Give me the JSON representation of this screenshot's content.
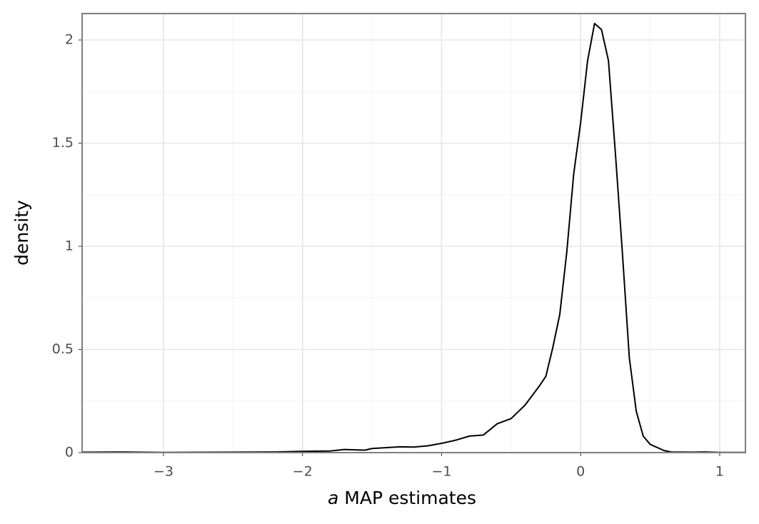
{
  "chart_data": {
    "type": "line",
    "xlabel_symbol": "a",
    "xlabel": "MAP estimates",
    "ylabel": "density",
    "x": [
      -3.58,
      -3.3,
      -3.0,
      -2.5,
      -2.2,
      -2.0,
      -1.8,
      -1.7,
      -1.55,
      -1.5,
      -1.3,
      -1.2,
      -1.1,
      -1.0,
      -0.9,
      -0.8,
      -0.7,
      -0.6,
      -0.5,
      -0.4,
      -0.3,
      -0.25,
      -0.2,
      -0.15,
      -0.1,
      -0.05,
      0.0,
      0.05,
      0.1,
      0.15,
      0.2,
      0.25,
      0.3,
      0.35,
      0.4,
      0.45,
      0.5,
      0.6,
      0.65,
      0.8,
      0.9,
      1.0,
      1.18
    ],
    "series": [
      {
        "color": "#000000",
        "values": [
          0.002,
          0.003,
          0.001,
          0.002,
          0.003,
          0.006,
          0.008,
          0.015,
          0.012,
          0.02,
          0.028,
          0.027,
          0.033,
          0.045,
          0.06,
          0.08,
          0.085,
          0.14,
          0.165,
          0.23,
          0.32,
          0.37,
          0.51,
          0.67,
          0.97,
          1.35,
          1.6,
          1.9,
          2.08,
          2.05,
          1.9,
          1.45,
          0.97,
          0.46,
          0.2,
          0.08,
          0.04,
          0.01,
          0.003,
          0.002,
          0.003,
          0.001,
          0.001
        ]
      }
    ],
    "xlim": [
      -3.585,
      1.185
    ],
    "ylim": [
      0,
      2.128
    ],
    "xticks": [
      {
        "value": -3,
        "label": "−3"
      },
      {
        "value": -2,
        "label": "−2"
      },
      {
        "value": -1,
        "label": "−1"
      },
      0,
      1
    ],
    "yticks": [
      0,
      0.5,
      1,
      1.5,
      2
    ],
    "grid": true,
    "minor_grid": true
  }
}
